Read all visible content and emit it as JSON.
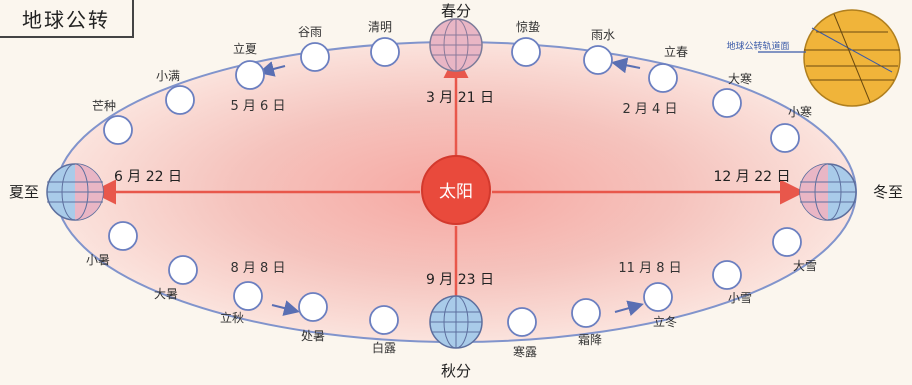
{
  "title": "地球公转",
  "sun_label": "太阳",
  "cardinal": {
    "spring": {
      "name": "春分",
      "date": "3 月 21 日"
    },
    "summer": {
      "name": "夏至",
      "date": "6 月 22 日"
    },
    "autumn": {
      "name": "秋分",
      "date": "9 月 23 日"
    },
    "winter": {
      "name": "冬至",
      "date": "12 月 22 日"
    }
  },
  "terms_top": [
    "立夏",
    "谷雨",
    "清明",
    "惊蛰",
    "雨水",
    "立春"
  ],
  "terms_left_top": [
    "小满",
    "芒种"
  ],
  "terms_right_top": [
    "大寒",
    "小寒"
  ],
  "terms_left_bottom": [
    "小暑",
    "大暑"
  ],
  "terms_right_bottom": [
    "大雪",
    "小雪"
  ],
  "terms_bottom": [
    "立秋",
    "处暑",
    "白露",
    "寒露",
    "霜降",
    "立冬"
  ],
  "date_labels": {
    "lixia": "5 月 6 日",
    "lichun": "2 月 4 日",
    "liqiu": "8 月 8 日",
    "lidong": "11 月 8 日"
  },
  "inset": {
    "orbit_plane_label": "地球公转轨道面"
  },
  "colors": {
    "orbit_fill": "#f4c3bf",
    "orbit_line": "#7b8fc9",
    "sun": "#e94a3c",
    "arrow": "#e8574b",
    "globe_blue": "#a9cbe9",
    "globe_pink": "#e9b6c5",
    "inset_fill": "#f0b43a"
  }
}
